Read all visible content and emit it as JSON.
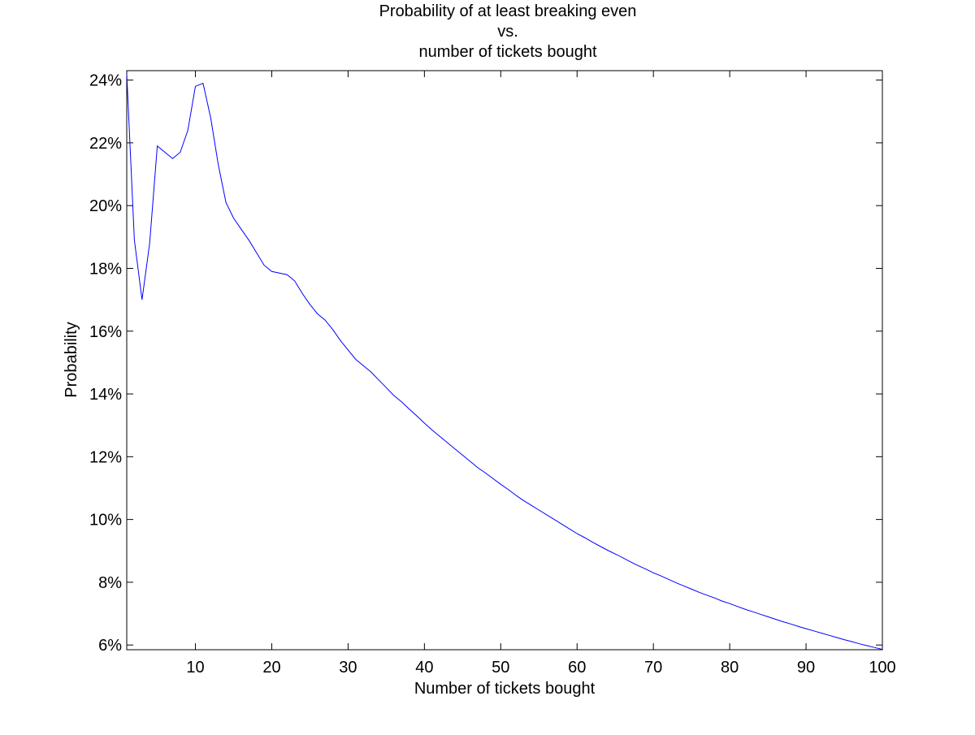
{
  "chart_data": {
    "type": "line",
    "title": [
      "Probability of at least breaking even",
      "vs.",
      "number of tickets bought"
    ],
    "xlabel": "Number of tickets bought",
    "ylabel": "Probability",
    "xlim": [
      1,
      100
    ],
    "ylim": [
      5.85,
      24.3
    ],
    "y_unit": "%",
    "xticks": [
      10,
      20,
      30,
      40,
      50,
      60,
      70,
      80,
      90,
      100
    ],
    "xtick_labels": [
      "10",
      "20",
      "30",
      "40",
      "50",
      "60",
      "70",
      "80",
      "90",
      "100"
    ],
    "yticks": [
      6,
      8,
      10,
      12,
      14,
      16,
      18,
      20,
      22,
      24
    ],
    "ytick_labels": [
      "6%",
      "8%",
      "10%",
      "12%",
      "14%",
      "16%",
      "18%",
      "20%",
      "22%",
      "24%"
    ],
    "grid": false,
    "line_color": "#0000ff",
    "series": [
      {
        "x": [
          1,
          2,
          3,
          4,
          5,
          6,
          7,
          8,
          9,
          10,
          11,
          12,
          13,
          14,
          15,
          16,
          17,
          18,
          19,
          20,
          21,
          22,
          23,
          24,
          25,
          26,
          27,
          28,
          29,
          30,
          31,
          32,
          33,
          34,
          35,
          36,
          37,
          38,
          39,
          40,
          41,
          42,
          43,
          44,
          45,
          46,
          47,
          48,
          49,
          50,
          51,
          52,
          53,
          54,
          55,
          56,
          57,
          58,
          59,
          60,
          61,
          62,
          63,
          64,
          65,
          66,
          67,
          68,
          69,
          70,
          71,
          72,
          73,
          74,
          75,
          76,
          77,
          78,
          79,
          80,
          81,
          82,
          83,
          84,
          85,
          86,
          87,
          88,
          89,
          90,
          91,
          92,
          93,
          94,
          95,
          96,
          97,
          98,
          99,
          100
        ],
        "values": [
          24.2,
          18.9,
          17.0,
          18.8,
          21.9,
          21.7,
          21.5,
          21.7,
          22.4,
          23.8,
          23.9,
          22.8,
          21.3,
          20.1,
          19.6,
          19.25,
          18.9,
          18.5,
          18.1,
          17.9,
          17.85,
          17.8,
          17.6,
          17.2,
          16.85,
          16.55,
          16.35,
          16.05,
          15.7,
          15.4,
          15.1,
          14.9,
          14.7,
          14.45,
          14.2,
          13.95,
          13.75,
          13.52,
          13.3,
          13.07,
          12.85,
          12.65,
          12.45,
          12.25,
          12.05,
          11.85,
          11.65,
          11.48,
          11.3,
          11.12,
          10.95,
          10.77,
          10.6,
          10.45,
          10.3,
          10.15,
          10.0,
          9.85,
          9.7,
          9.55,
          9.42,
          9.28,
          9.15,
          9.02,
          8.9,
          8.78,
          8.65,
          8.53,
          8.42,
          8.3,
          8.2,
          8.09,
          7.98,
          7.88,
          7.78,
          7.68,
          7.59,
          7.5,
          7.4,
          7.32,
          7.23,
          7.14,
          7.06,
          6.98,
          6.9,
          6.82,
          6.74,
          6.67,
          6.59,
          6.52,
          6.45,
          6.38,
          6.31,
          6.24,
          6.17,
          6.11,
          6.04,
          5.98,
          5.92,
          5.86
        ]
      }
    ]
  }
}
